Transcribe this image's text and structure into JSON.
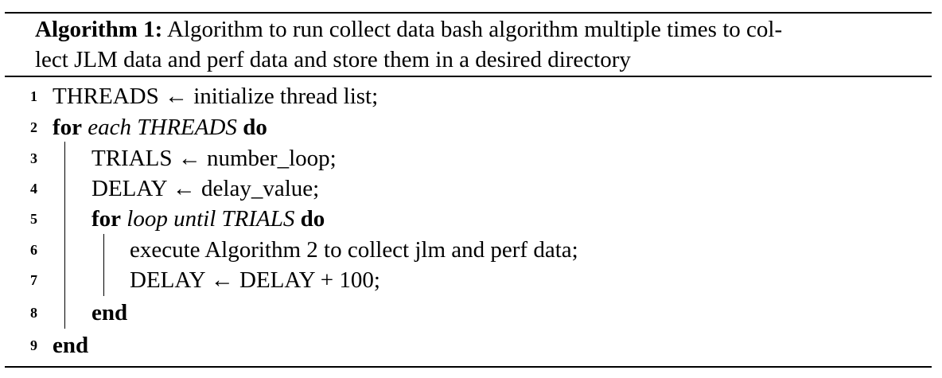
{
  "algorithm": {
    "label": "Algorithm 1:",
    "caption_line1": "Algorithm to run collect data bash algorithm multiple times to col-",
    "caption_line2": "lect JLM data and perf data and store them in a desired directory",
    "lines": [
      {
        "num": "1",
        "text": "THREADS ← initialize thread list;"
      },
      {
        "num": "2",
        "kw1": "for",
        "cond": "each THREADS",
        "kw2": "do"
      },
      {
        "num": "3",
        "text": "TRIALS ← number_loop;"
      },
      {
        "num": "4",
        "text": "DELAY ← delay_value;"
      },
      {
        "num": "5",
        "kw1": "for",
        "cond": "loop until TRIALS",
        "kw2": "do"
      },
      {
        "num": "6",
        "text": "execute Algorithm 2 to collect jlm and perf data;"
      },
      {
        "num": "7",
        "text": "DELAY ← DELAY + 100;"
      },
      {
        "num": "8",
        "kw": "end"
      },
      {
        "num": "9",
        "kw": "end"
      }
    ]
  }
}
